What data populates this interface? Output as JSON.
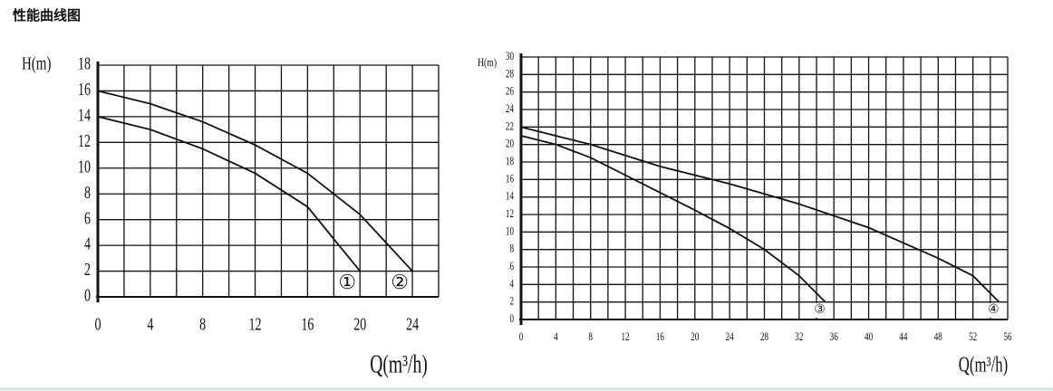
{
  "page_title": "性能曲线图",
  "chart_data": [
    {
      "type": "line",
      "y_label": "H(m)",
      "x_label": "Q(m³/h)",
      "xlim": [
        0,
        26
      ],
      "xticks": [
        0,
        4,
        8,
        12,
        16,
        20,
        24
      ],
      "x_minor_grid": [
        2,
        6,
        10,
        14,
        18,
        22,
        26
      ],
      "ylim": [
        0,
        18
      ],
      "yticks": [
        0,
        2,
        4,
        6,
        8,
        10,
        12,
        14,
        16,
        18
      ],
      "grid": true,
      "series": [
        {
          "name": "①",
          "color": "#111",
          "x": [
            0,
            4,
            8,
            12,
            16,
            20
          ],
          "values": [
            14,
            13,
            11.5,
            9.6,
            7,
            2
          ]
        },
        {
          "name": "②",
          "color": "#111",
          "x": [
            0,
            4,
            8,
            12,
            16,
            20,
            24
          ],
          "values": [
            16,
            15,
            13.6,
            11.8,
            9.6,
            6.4,
            2
          ]
        }
      ]
    },
    {
      "type": "line",
      "y_label": "H(m)",
      "x_label": "Q(m³/h)",
      "xlim": [
        0,
        56
      ],
      "xticks": [
        0,
        4,
        8,
        12,
        16,
        20,
        24,
        28,
        32,
        36,
        40,
        44,
        48,
        52,
        56
      ],
      "x_minor_grid": [
        2,
        6,
        10,
        14,
        18,
        22,
        26,
        30,
        34,
        38,
        42,
        46,
        50,
        54
      ],
      "ylim": [
        0,
        30
      ],
      "yticks": [
        0,
        2,
        4,
        6,
        8,
        10,
        12,
        14,
        16,
        18,
        20,
        22,
        24,
        26,
        28,
        30
      ],
      "grid": true,
      "series": [
        {
          "name": "③",
          "color": "#111",
          "x": [
            0,
            4,
            8,
            12,
            16,
            20,
            24,
            28,
            32,
            35
          ],
          "values": [
            21,
            20,
            18.5,
            16.5,
            14.5,
            12.5,
            10.4,
            8,
            5,
            2
          ]
        },
        {
          "name": "④",
          "color": "#111",
          "x": [
            0,
            8,
            16,
            24,
            32,
            40,
            48,
            52,
            55
          ],
          "values": [
            22,
            20,
            17.5,
            15.5,
            13.2,
            10.5,
            7,
            5,
            2
          ]
        }
      ]
    }
  ]
}
